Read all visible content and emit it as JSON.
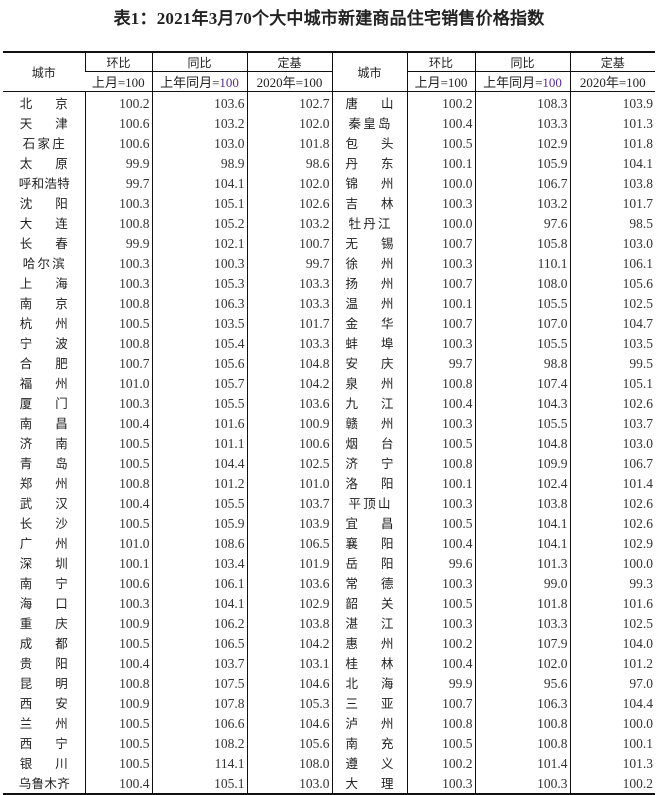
{
  "title": "表1：2021年3月70个大中城市新建商品住宅销售价格指数",
  "header": {
    "city": "城市",
    "mom": "环比",
    "yoy": "同比",
    "base": "定基",
    "mom_sub": "上月=100",
    "yoy_sub_prefix": "上年同月=",
    "yoy_sub_num": "100",
    "base_sub": "2020年=100"
  },
  "left_rows": [
    [
      "北京",
      "100.2",
      "103.6",
      "102.7"
    ],
    [
      "天津",
      "100.6",
      "103.2",
      "102.0"
    ],
    [
      "石家庄",
      "100.6",
      "103.0",
      "101.8"
    ],
    [
      "太原",
      "99.9",
      "98.9",
      "98.6"
    ],
    [
      "呼和浩特",
      "99.7",
      "104.1",
      "102.0"
    ],
    [
      "沈阳",
      "100.3",
      "105.1",
      "102.6"
    ],
    [
      "大连",
      "100.8",
      "105.2",
      "103.2"
    ],
    [
      "长春",
      "99.9",
      "102.1",
      "100.7"
    ],
    [
      "哈尔滨",
      "100.3",
      "100.3",
      "99.7"
    ],
    [
      "上海",
      "100.3",
      "105.3",
      "103.3"
    ],
    [
      "南京",
      "100.8",
      "106.3",
      "103.3"
    ],
    [
      "杭州",
      "100.5",
      "103.5",
      "101.7"
    ],
    [
      "宁波",
      "100.8",
      "105.4",
      "103.3"
    ],
    [
      "合肥",
      "100.7",
      "105.6",
      "104.8"
    ],
    [
      "福州",
      "101.0",
      "105.7",
      "104.2"
    ],
    [
      "厦门",
      "100.3",
      "105.5",
      "103.6"
    ],
    [
      "南昌",
      "100.4",
      "101.6",
      "100.9"
    ],
    [
      "济南",
      "100.5",
      "101.1",
      "100.6"
    ],
    [
      "青岛",
      "100.5",
      "104.4",
      "102.5"
    ],
    [
      "郑州",
      "100.8",
      "101.2",
      "101.0"
    ],
    [
      "武汉",
      "100.4",
      "105.5",
      "103.7"
    ],
    [
      "长沙",
      "100.5",
      "105.9",
      "103.9"
    ],
    [
      "广州",
      "101.0",
      "108.6",
      "106.5"
    ],
    [
      "深圳",
      "100.1",
      "103.4",
      "101.9"
    ],
    [
      "南宁",
      "100.6",
      "106.1",
      "103.6"
    ],
    [
      "海口",
      "100.3",
      "104.1",
      "102.9"
    ],
    [
      "重庆",
      "100.9",
      "106.2",
      "103.8"
    ],
    [
      "成都",
      "100.5",
      "106.5",
      "104.2"
    ],
    [
      "贵阳",
      "100.4",
      "103.7",
      "103.1"
    ],
    [
      "昆明",
      "100.8",
      "107.5",
      "104.6"
    ],
    [
      "西安",
      "100.9",
      "107.8",
      "105.3"
    ],
    [
      "兰州",
      "100.5",
      "106.6",
      "104.6"
    ],
    [
      "西宁",
      "100.5",
      "108.2",
      "105.6"
    ],
    [
      "银川",
      "100.5",
      "114.1",
      "108.0"
    ],
    [
      "乌鲁木齐",
      "100.4",
      "105.1",
      "103.0"
    ]
  ],
  "right_rows": [
    [
      "唐山",
      "100.2",
      "108.3",
      "103.9"
    ],
    [
      "秦皇岛",
      "100.4",
      "103.3",
      "101.3"
    ],
    [
      "包头",
      "100.5",
      "102.9",
      "101.8"
    ],
    [
      "丹东",
      "100.1",
      "105.9",
      "104.1"
    ],
    [
      "锦州",
      "100.0",
      "106.7",
      "103.8"
    ],
    [
      "吉林",
      "100.3",
      "103.2",
      "101.7"
    ],
    [
      "牡丹江",
      "100.0",
      "97.6",
      "98.5"
    ],
    [
      "无锡",
      "100.7",
      "105.8",
      "103.0"
    ],
    [
      "徐州",
      "100.3",
      "110.1",
      "106.1"
    ],
    [
      "扬州",
      "100.7",
      "108.0",
      "105.6"
    ],
    [
      "温州",
      "100.1",
      "105.5",
      "102.5"
    ],
    [
      "金华",
      "100.7",
      "107.0",
      "104.7"
    ],
    [
      "蚌埠",
      "100.3",
      "105.5",
      "103.5"
    ],
    [
      "安庆",
      "99.7",
      "98.8",
      "99.5"
    ],
    [
      "泉州",
      "100.8",
      "107.4",
      "105.1"
    ],
    [
      "九江",
      "100.4",
      "104.3",
      "102.6"
    ],
    [
      "赣州",
      "100.3",
      "105.5",
      "103.7"
    ],
    [
      "烟台",
      "100.5",
      "104.8",
      "103.0"
    ],
    [
      "济宁",
      "100.8",
      "109.9",
      "106.7"
    ],
    [
      "洛阳",
      "100.1",
      "102.4",
      "101.4"
    ],
    [
      "平顶山",
      "100.3",
      "103.8",
      "102.6"
    ],
    [
      "宜昌",
      "100.5",
      "104.1",
      "102.6"
    ],
    [
      "襄阳",
      "100.4",
      "104.1",
      "102.9"
    ],
    [
      "岳阳",
      "99.6",
      "101.3",
      "100.0"
    ],
    [
      "常德",
      "100.3",
      "99.0",
      "99.3"
    ],
    [
      "韶关",
      "100.5",
      "101.8",
      "101.6"
    ],
    [
      "湛江",
      "100.3",
      "103.3",
      "102.5"
    ],
    [
      "惠州",
      "100.2",
      "107.9",
      "104.0"
    ],
    [
      "桂林",
      "100.4",
      "102.0",
      "101.2"
    ],
    [
      "北海",
      "99.9",
      "95.6",
      "97.0"
    ],
    [
      "三亚",
      "100.7",
      "106.3",
      "104.4"
    ],
    [
      "泸州",
      "100.8",
      "100.8",
      "100.0"
    ],
    [
      "南充",
      "100.5",
      "100.8",
      "100.1"
    ],
    [
      "遵义",
      "100.2",
      "101.4",
      "101.3"
    ],
    [
      "大理",
      "100.3",
      "100.3",
      "100.2"
    ]
  ]
}
